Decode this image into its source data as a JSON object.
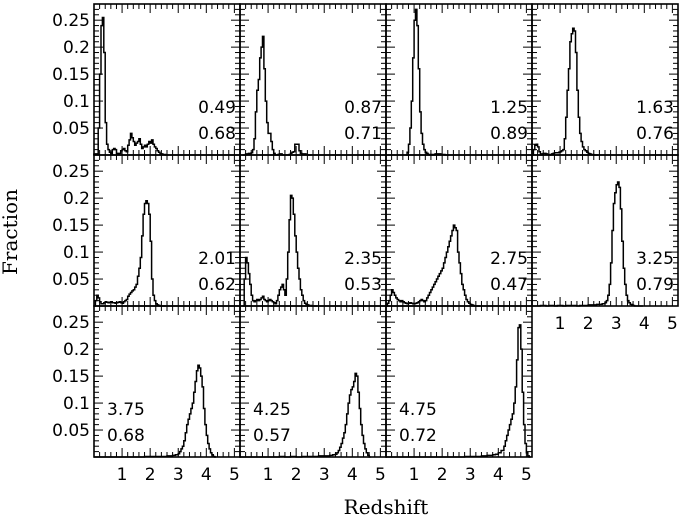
{
  "chart_data": {
    "type": "line",
    "xlabel": "Redshift",
    "ylabel": "Fraction",
    "xlim": [
      0,
      5.2
    ],
    "ylim": [
      0,
      0.28
    ],
    "x_ticks": [
      "1",
      "2",
      "3",
      "4",
      "5"
    ],
    "y_ticks": [
      "0.05",
      "0.1",
      "0.15",
      "0.2",
      "0.25"
    ],
    "panels": [
      {
        "label_top": "0.49",
        "label_bottom": "0.68",
        "x": [
          0,
          0.15,
          0.2,
          0.25,
          0.3,
          0.35,
          0.4,
          0.45,
          0.5,
          0.55,
          0.6,
          0.65,
          0.7,
          0.75,
          0.8,
          0.85,
          0.9,
          0.95,
          1.0,
          1.05,
          1.1,
          1.15,
          1.2,
          1.25,
          1.3,
          1.35,
          1.4,
          1.45,
          1.5,
          1.55,
          1.6,
          1.65,
          1.7,
          1.75,
          1.8,
          1.85,
          1.9,
          1.95,
          2.0,
          2.05,
          2.1,
          2.15,
          2.2,
          2.25,
          2.3,
          2.35,
          2.4,
          2.45,
          2.5,
          2.55,
          2.6
        ],
        "y": [
          0.002,
          0.05,
          0.15,
          0.24,
          0.255,
          0.19,
          0.06,
          0.02,
          0.01,
          0.005,
          0.002,
          0.01,
          0.012,
          0.01,
          0.003,
          0.001,
          0.003,
          0.008,
          0.01,
          0.012,
          0.008,
          0.006,
          0.018,
          0.028,
          0.04,
          0.032,
          0.025,
          0.018,
          0.022,
          0.025,
          0.03,
          0.02,
          0.012,
          0.015,
          0.018,
          0.015,
          0.02,
          0.025,
          0.022,
          0.028,
          0.02,
          0.015,
          0.012,
          0.008,
          0.005,
          0.002,
          0.002,
          0.001,
          0.001,
          0.0,
          0.0
        ]
      },
      {
        "label_top": "0.87",
        "label_bottom": "0.71",
        "x": [
          0.1,
          0.2,
          0.3,
          0.35,
          0.4,
          0.45,
          0.5,
          0.55,
          0.6,
          0.65,
          0.7,
          0.75,
          0.8,
          0.85,
          0.9,
          0.95,
          1.0,
          1.05,
          1.1,
          1.15,
          1.2,
          1.25,
          1.3,
          1.35,
          1.4,
          1.45,
          1.5,
          1.55,
          1.6,
          1.65,
          1.7,
          1.75,
          1.8,
          1.85,
          1.9,
          1.95,
          2.0,
          2.05,
          2.1,
          2.15,
          2.2,
          2.25,
          2.3,
          2.35,
          2.4,
          2.45,
          2.5
        ],
        "y": [
          0.0,
          0.002,
          0.003,
          0.002,
          0.004,
          0.01,
          0.03,
          0.08,
          0.12,
          0.14,
          0.18,
          0.2,
          0.22,
          0.16,
          0.1,
          0.06,
          0.04,
          0.04,
          0.025,
          0.01,
          0.003,
          0.0,
          0.0,
          0.001,
          0.002,
          0.002,
          0.0,
          0.0,
          0.0,
          0.0,
          0.0,
          0.001,
          0.003,
          0.005,
          0.006,
          0.02,
          0.02,
          0.02,
          0.008,
          0.003,
          0.002,
          0.001,
          0.002,
          0.001,
          0.0,
          0.0,
          0.0
        ]
      },
      {
        "label_top": "1.25",
        "label_bottom": "0.89",
        "x": [
          0.7,
          0.75,
          0.8,
          0.85,
          0.9,
          0.95,
          1.0,
          1.05,
          1.1,
          1.15,
          1.2,
          1.25,
          1.3,
          1.35,
          1.4,
          1.45,
          1.5,
          1.55,
          1.6,
          1.65,
          1.7,
          1.75,
          1.8,
          1.85,
          1.9,
          1.95,
          2.0,
          2.05,
          2.1,
          2.15,
          2.2
        ],
        "y": [
          0.0,
          0.005,
          0.02,
          0.05,
          0.1,
          0.18,
          0.25,
          0.27,
          0.24,
          0.16,
          0.08,
          0.04,
          0.02,
          0.01,
          0.005,
          0.003,
          0.001,
          0.0,
          0.001,
          0.0,
          0.001,
          0.002,
          0.001,
          0.002,
          0.002,
          0.001,
          0.001,
          0.001,
          0.0,
          0.0,
          0.0
        ]
      },
      {
        "label_top": "1.63",
        "label_bottom": "0.76",
        "x": [
          0.0,
          0.05,
          0.1,
          0.15,
          0.2,
          0.25,
          0.3,
          0.35,
          0.4,
          0.45,
          0.5,
          0.55,
          0.6,
          0.65,
          0.7,
          0.75,
          0.8,
          0.85,
          0.9,
          0.95,
          1.0,
          1.05,
          1.1,
          1.15,
          1.2,
          1.25,
          1.3,
          1.35,
          1.4,
          1.45,
          1.5,
          1.55,
          1.6,
          1.65,
          1.7,
          1.75,
          1.8,
          1.85,
          1.9,
          1.95,
          2.0,
          2.05,
          2.1,
          2.15,
          2.2,
          2.25,
          2.3
        ],
        "y": [
          0.0,
          0.01,
          0.018,
          0.02,
          0.015,
          0.006,
          0.0,
          0.002,
          0.003,
          0.003,
          0.002,
          0.001,
          0.0,
          0.001,
          0.002,
          0.003,
          0.004,
          0.004,
          0.004,
          0.005,
          0.006,
          0.008,
          0.01,
          0.03,
          0.07,
          0.12,
          0.16,
          0.21,
          0.225,
          0.235,
          0.23,
          0.19,
          0.12,
          0.07,
          0.04,
          0.025,
          0.015,
          0.01,
          0.008,
          0.005,
          0.003,
          0.002,
          0.001,
          0.001,
          0.0,
          0.0,
          0.0
        ]
      },
      {
        "label_top": "2.01",
        "label_bottom": "0.62",
        "x": [
          0.0,
          0.05,
          0.1,
          0.15,
          0.2,
          0.25,
          0.3,
          0.35,
          0.4,
          0.45,
          0.5,
          0.55,
          0.6,
          0.65,
          0.7,
          0.75,
          0.8,
          0.85,
          0.9,
          0.95,
          1.0,
          1.05,
          1.1,
          1.15,
          1.2,
          1.25,
          1.3,
          1.35,
          1.4,
          1.45,
          1.5,
          1.55,
          1.6,
          1.65,
          1.7,
          1.75,
          1.8,
          1.85,
          1.9,
          1.95,
          2.0,
          2.05,
          2.1,
          2.15,
          2.2,
          2.25,
          2.3,
          2.35,
          2.4,
          2.45,
          2.5
        ],
        "y": [
          0.0,
          0.01,
          0.02,
          0.015,
          0.008,
          0.004,
          0.004,
          0.006,
          0.008,
          0.007,
          0.006,
          0.007,
          0.008,
          0.006,
          0.006,
          0.005,
          0.006,
          0.007,
          0.008,
          0.006,
          0.005,
          0.008,
          0.01,
          0.012,
          0.018,
          0.022,
          0.025,
          0.028,
          0.03,
          0.035,
          0.04,
          0.055,
          0.07,
          0.09,
          0.13,
          0.17,
          0.19,
          0.195,
          0.19,
          0.17,
          0.12,
          0.05,
          0.02,
          0.01,
          0.004,
          0.002,
          0.001,
          0.0,
          0.0,
          0.0,
          0.0
        ]
      },
      {
        "label_top": "2.35",
        "label_bottom": "0.53",
        "x": [
          0.1,
          0.15,
          0.2,
          0.25,
          0.3,
          0.35,
          0.4,
          0.45,
          0.5,
          0.55,
          0.6,
          0.65,
          0.7,
          0.75,
          0.8,
          0.85,
          0.9,
          0.95,
          1.0,
          1.05,
          1.1,
          1.15,
          1.2,
          1.25,
          1.3,
          1.35,
          1.4,
          1.45,
          1.5,
          1.55,
          1.6,
          1.65,
          1.7,
          1.75,
          1.8,
          1.85,
          1.9,
          1.95,
          2.0,
          2.05,
          2.1,
          2.15,
          2.2,
          2.25,
          2.3,
          2.35,
          2.4,
          2.45,
          2.5,
          2.55,
          2.6,
          2.65,
          2.7
        ],
        "y": [
          0.0,
          0.05,
          0.09,
          0.08,
          0.06,
          0.04,
          0.02,
          0.01,
          0.008,
          0.01,
          0.012,
          0.01,
          0.012,
          0.015,
          0.018,
          0.012,
          0.01,
          0.008,
          0.01,
          0.012,
          0.01,
          0.008,
          0.006,
          0.004,
          0.01,
          0.02,
          0.03,
          0.035,
          0.04,
          0.03,
          0.02,
          0.05,
          0.1,
          0.16,
          0.205,
          0.2,
          0.17,
          0.13,
          0.1,
          0.07,
          0.05,
          0.03,
          0.02,
          0.01,
          0.005,
          0.003,
          0.002,
          0.001,
          0.001,
          0.0,
          0.0,
          0.0,
          0.0
        ]
      },
      {
        "label_top": "2.75",
        "label_bottom": "0.47",
        "x": [
          0.0,
          0.05,
          0.1,
          0.15,
          0.2,
          0.25,
          0.3,
          0.35,
          0.4,
          0.45,
          0.5,
          0.55,
          0.6,
          0.65,
          0.7,
          0.75,
          0.8,
          0.85,
          0.9,
          0.95,
          1.0,
          1.05,
          1.1,
          1.15,
          1.2,
          1.25,
          1.3,
          1.35,
          1.4,
          1.45,
          1.5,
          1.55,
          1.6,
          1.65,
          1.7,
          1.75,
          1.8,
          1.85,
          1.9,
          1.95,
          2.0,
          2.05,
          2.1,
          2.15,
          2.2,
          2.25,
          2.3,
          2.35,
          2.4,
          2.45,
          2.5,
          2.55,
          2.6,
          2.65,
          2.7,
          2.75,
          2.8,
          2.85,
          2.9,
          2.95,
          3.0,
          3.05,
          3.1,
          3.15,
          3.2,
          3.25,
          3.3
        ],
        "y": [
          0.0,
          0.005,
          0.01,
          0.02,
          0.03,
          0.025,
          0.02,
          0.015,
          0.012,
          0.01,
          0.008,
          0.01,
          0.008,
          0.006,
          0.005,
          0.004,
          0.005,
          0.006,
          0.005,
          0.004,
          0.004,
          0.005,
          0.006,
          0.008,
          0.01,
          0.012,
          0.01,
          0.008,
          0.01,
          0.015,
          0.02,
          0.025,
          0.03,
          0.035,
          0.04,
          0.045,
          0.05,
          0.055,
          0.06,
          0.065,
          0.07,
          0.08,
          0.09,
          0.1,
          0.11,
          0.12,
          0.13,
          0.14,
          0.15,
          0.145,
          0.14,
          0.1,
          0.08,
          0.06,
          0.04,
          0.03,
          0.02,
          0.012,
          0.008,
          0.005,
          0.003,
          0.002,
          0.001,
          0.0,
          0.0,
          0.0,
          0.0
        ]
      },
      {
        "label_top": "3.25",
        "label_bottom": "0.79",
        "x": [
          0.0,
          0.1,
          0.2,
          0.3,
          0.4,
          0.5,
          0.6,
          0.7,
          0.8,
          0.9,
          1.0,
          1.1,
          1.2,
          1.3,
          1.4,
          1.5,
          1.6,
          1.7,
          1.8,
          1.9,
          2.0,
          2.1,
          2.2,
          2.3,
          2.4,
          2.5,
          2.6,
          2.65,
          2.7,
          2.75,
          2.8,
          2.85,
          2.9,
          2.95,
          3.0,
          3.05,
          3.1,
          3.15,
          3.2,
          3.25,
          3.3,
          3.35,
          3.4,
          3.45,
          3.5,
          3.55,
          3.6,
          3.65,
          3.7,
          3.75,
          3.8,
          3.9
        ],
        "y": [
          0.0,
          0.0,
          0.0,
          0.001,
          0.001,
          0.0,
          0.001,
          0.001,
          0.0,
          0.001,
          0.001,
          0.0,
          0.001,
          0.001,
          0.001,
          0.001,
          0.0,
          0.001,
          0.001,
          0.001,
          0.002,
          0.002,
          0.002,
          0.003,
          0.003,
          0.004,
          0.006,
          0.01,
          0.02,
          0.04,
          0.08,
          0.14,
          0.19,
          0.21,
          0.225,
          0.23,
          0.22,
          0.18,
          0.12,
          0.07,
          0.04,
          0.02,
          0.01,
          0.006,
          0.003,
          0.002,
          0.001,
          0.0,
          0.0,
          0.0,
          0.0,
          0.0
        ]
      },
      {
        "label_top": "3.75",
        "label_bottom": "0.68",
        "x": [
          0.0,
          0.2,
          0.4,
          0.6,
          0.8,
          1.0,
          1.2,
          1.4,
          1.6,
          1.8,
          2.0,
          2.2,
          2.4,
          2.6,
          2.8,
          2.9,
          3.0,
          3.05,
          3.1,
          3.15,
          3.2,
          3.25,
          3.3,
          3.35,
          3.4,
          3.45,
          3.5,
          3.55,
          3.6,
          3.65,
          3.7,
          3.75,
          3.8,
          3.85,
          3.9,
          3.95,
          4.0,
          4.05,
          4.1,
          4.15,
          4.2,
          4.25,
          4.3
        ],
        "y": [
          0.0,
          0.0,
          0.0,
          0.0,
          0.0,
          0.0,
          0.0,
          0.0,
          0.0,
          0.001,
          0.001,
          0.001,
          0.001,
          0.002,
          0.003,
          0.004,
          0.006,
          0.01,
          0.015,
          0.02,
          0.03,
          0.045,
          0.06,
          0.07,
          0.08,
          0.09,
          0.1,
          0.12,
          0.14,
          0.16,
          0.17,
          0.165,
          0.15,
          0.13,
          0.09,
          0.06,
          0.04,
          0.025,
          0.015,
          0.008,
          0.004,
          0.001,
          0.0
        ]
      },
      {
        "label_top": "4.25",
        "label_bottom": "0.57",
        "x": [
          0.0,
          0.2,
          0.4,
          0.6,
          0.8,
          1.0,
          1.2,
          1.4,
          1.6,
          1.8,
          2.0,
          2.2,
          2.4,
          2.6,
          2.8,
          3.0,
          3.2,
          3.3,
          3.4,
          3.45,
          3.5,
          3.55,
          3.6,
          3.65,
          3.7,
          3.75,
          3.8,
          3.85,
          3.9,
          3.95,
          4.0,
          4.05,
          4.1,
          4.15,
          4.2,
          4.25,
          4.3,
          4.35,
          4.4,
          4.45,
          4.5,
          4.55,
          4.6
        ],
        "y": [
          0.0,
          0.0,
          0.0,
          0.0,
          0.0,
          0.0,
          0.0,
          0.001,
          0.0,
          0.001,
          0.0,
          0.001,
          0.001,
          0.001,
          0.002,
          0.002,
          0.003,
          0.004,
          0.005,
          0.008,
          0.012,
          0.018,
          0.025,
          0.035,
          0.045,
          0.06,
          0.08,
          0.1,
          0.115,
          0.125,
          0.13,
          0.14,
          0.155,
          0.15,
          0.12,
          0.09,
          0.06,
          0.04,
          0.025,
          0.015,
          0.008,
          0.003,
          0.0
        ]
      },
      {
        "label_top": "4.75",
        "label_bottom": "0.72",
        "x": [
          0.0,
          0.2,
          0.4,
          0.6,
          0.8,
          1.0,
          1.2,
          1.4,
          1.6,
          1.8,
          2.0,
          2.2,
          2.4,
          2.6,
          2.8,
          3.0,
          3.2,
          3.4,
          3.6,
          3.8,
          3.9,
          4.0,
          4.1,
          4.2,
          4.25,
          4.3,
          4.35,
          4.4,
          4.45,
          4.5,
          4.55,
          4.6,
          4.65,
          4.7,
          4.75,
          4.8,
          4.85,
          4.9,
          4.95,
          5.0,
          5.05,
          5.1
        ],
        "y": [
          0.0,
          0.0,
          0.0,
          0.0,
          0.0,
          0.0,
          0.0,
          0.0,
          0.0,
          0.0,
          0.0,
          0.0,
          0.0,
          0.0,
          0.001,
          0.001,
          0.001,
          0.002,
          0.003,
          0.004,
          0.005,
          0.008,
          0.012,
          0.02,
          0.03,
          0.04,
          0.05,
          0.06,
          0.07,
          0.08,
          0.1,
          0.13,
          0.18,
          0.24,
          0.245,
          0.2,
          0.12,
          0.06,
          0.025,
          0.008,
          0.002,
          0.0
        ]
      }
    ]
  }
}
